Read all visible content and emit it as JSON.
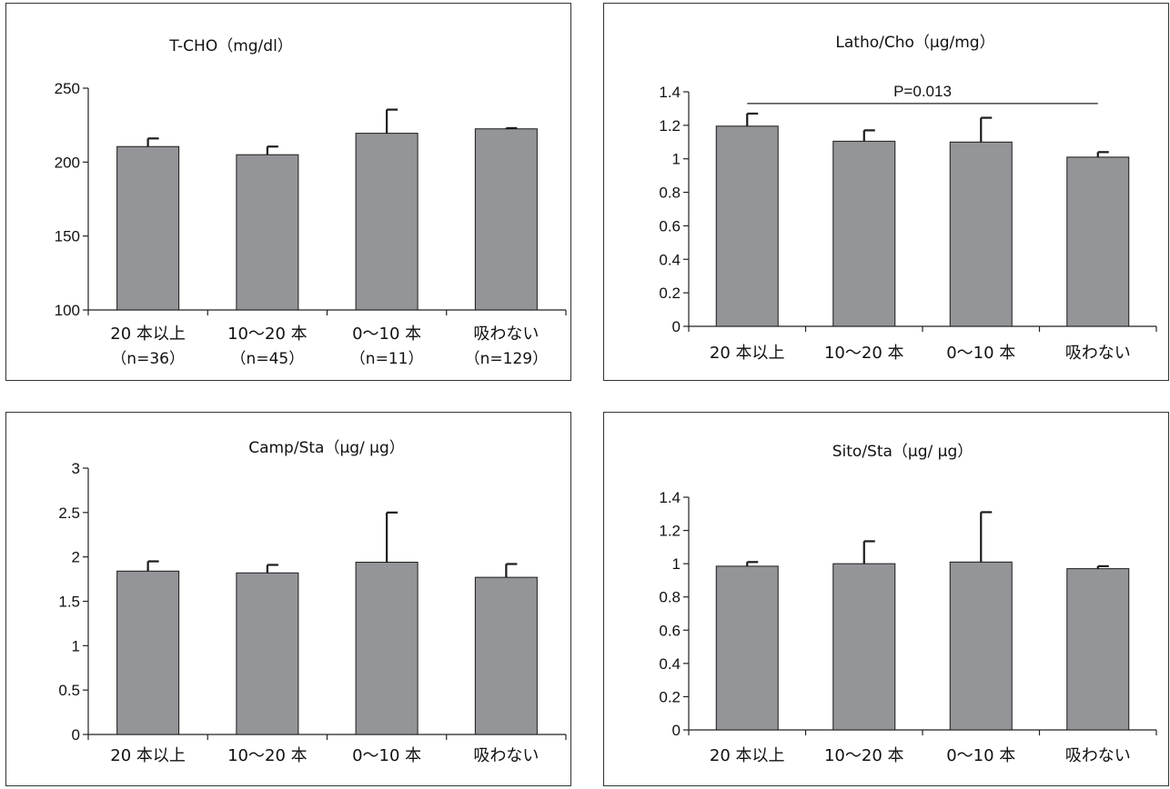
{
  "chart_data": [
    {
      "type": "bar",
      "title": "T-CHO（mg/dl）",
      "categories": [
        "20 本以上",
        "10〜20 本",
        "0〜10 本",
        "吸わない"
      ],
      "sublabels": [
        "（n=36）",
        "（n=45）",
        "（n=11）",
        "（n=129）"
      ],
      "values": [
        210.5,
        205,
        219.5,
        222.5
      ],
      "errors": [
        5.5,
        5.5,
        16,
        0.5
      ],
      "ylim": [
        100,
        250
      ],
      "yticks": [
        100,
        150,
        200,
        250
      ],
      "ytick_labels": [
        "100",
        "150",
        "200",
        "250"
      ],
      "bar_color": "#939598",
      "annotation": null
    },
    {
      "type": "bar",
      "title": "Latho/Cho（μg/mg）",
      "categories": [
        "20 本以上",
        "10〜20 本",
        "0〜10 本",
        "吸わない"
      ],
      "values": [
        1.195,
        1.105,
        1.1,
        1.01
      ],
      "errors": [
        0.075,
        0.065,
        0.145,
        0.03
      ],
      "ylim": [
        0,
        1.4
      ],
      "yticks": [
        0,
        0.2,
        0.4,
        0.6,
        0.8,
        1,
        1.2,
        1.4
      ],
      "ytick_labels": [
        "0",
        "0.2",
        "0.4",
        "0.6",
        "0.8",
        "1",
        "1.2",
        "1.4"
      ],
      "bar_color": "#939598",
      "annotation": {
        "text": "P=0.013",
        "from": 0,
        "to": 3,
        "y": 1.33
      }
    },
    {
      "type": "bar",
      "title": "Camp/Sta（μg/ μg）",
      "categories": [
        "20 本以上",
        "10〜20 本",
        "0〜10 本",
        "吸わない"
      ],
      "values": [
        1.84,
        1.82,
        1.94,
        1.77
      ],
      "errors": [
        0.11,
        0.09,
        0.56,
        0.15
      ],
      "ylim": [
        0,
        3
      ],
      "yticks": [
        0,
        0.5,
        1,
        1.5,
        2,
        2.5,
        3
      ],
      "ytick_labels": [
        "0",
        "0.5",
        "1",
        "1.5",
        "2",
        "2.5",
        "3"
      ],
      "bar_color": "#939598",
      "annotation": null
    },
    {
      "type": "bar",
      "title": "Sito/Sta（μg/ μg）",
      "categories": [
        "20 本以上",
        "10〜20 本",
        "0〜10 本",
        "吸わない"
      ],
      "values": [
        0.985,
        1.0,
        1.01,
        0.97
      ],
      "errors": [
        0.025,
        0.135,
        0.3,
        0.015
      ],
      "ylim": [
        0,
        1.4
      ],
      "yticks": [
        0,
        0.2,
        0.4,
        0.6,
        0.8,
        1,
        1.2,
        1.4
      ],
      "ytick_labels": [
        "0",
        "0.2",
        "0.4",
        "0.6",
        "0.8",
        "1",
        "1.2",
        "1.4"
      ],
      "bar_color": "#939598",
      "annotation": null
    }
  ]
}
